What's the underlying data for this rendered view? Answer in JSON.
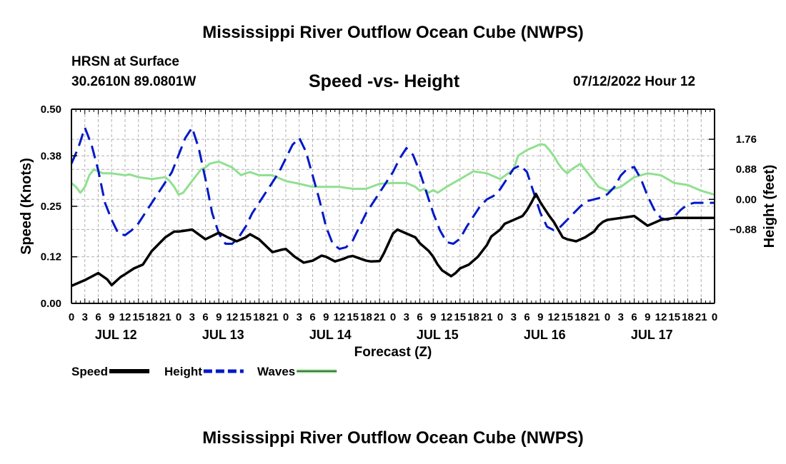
{
  "header": {
    "title": "Mississippi River Outflow Ocean Cube (NWPS)",
    "location": "HRSN at Surface",
    "coords": "30.2610N  89.0801W",
    "subtitle": "Speed -vs- Height",
    "datetime": "07/12/2022 Hour 12"
  },
  "footer": {
    "title": "Mississippi River Outflow Ocean Cube (NWPS)"
  },
  "chart_data": {
    "type": "line",
    "title": "Speed -vs- Height",
    "xlabel": "Forecast (Z)",
    "ylabel": "Speed (Knots)",
    "y2label": "Height (feet)",
    "xlim": [
      0,
      144
    ],
    "ylim": [
      0,
      0.5
    ],
    "y2lim": [
      -3.045,
      2.64
    ],
    "y_ticks": [
      "0.00",
      "0.12",
      "0.25",
      "0.38",
      "0.50"
    ],
    "y2_ticks": [
      {
        "value": 1.76,
        "label": "1.76"
      },
      {
        "value": 0.88,
        "label": "0.88"
      },
      {
        "value": 0.0,
        "label": "0.00"
      },
      {
        "value": -0.88,
        "label": "−0.88"
      }
    ],
    "hour_labels": [
      "0",
      "3",
      "6",
      "9",
      "12",
      "15",
      "18",
      "21",
      "0",
      "3",
      "6",
      "9",
      "12",
      "15",
      "18",
      "21",
      "0",
      "3",
      "6",
      "9",
      "12",
      "15",
      "18",
      "21",
      "0",
      "3",
      "6",
      "9",
      "12",
      "15",
      "18",
      "21",
      "0",
      "3",
      "6",
      "9",
      "12",
      "15",
      "18",
      "21",
      "0",
      "3",
      "6",
      "9",
      "12",
      "15",
      "18",
      "21",
      "0"
    ],
    "day_labels": [
      {
        "label": "JUL 12",
        "hour": 9
      },
      {
        "label": "JUL 13",
        "hour": 33
      },
      {
        "label": "JUL 14",
        "hour": 57
      },
      {
        "label": "JUL 15",
        "hour": 81
      },
      {
        "label": "JUL 16",
        "hour": 105
      },
      {
        "label": "JUL 17",
        "hour": 129
      }
    ],
    "grid": true,
    "legend_position": "bottom-left",
    "series": [
      {
        "name": "Speed",
        "color": "#000000",
        "dash": "solid",
        "axis": "left",
        "x": [
          0,
          3,
          6,
          8,
          9,
          11,
          12,
          14,
          16,
          18,
          21,
          23,
          24,
          27,
          30,
          33,
          35,
          37,
          39,
          40,
          42,
          45,
          47,
          48,
          50,
          52,
          54,
          56,
          57,
          59,
          61,
          62,
          63,
          64,
          66,
          67,
          69,
          70,
          72,
          73,
          75,
          77,
          78,
          80,
          81,
          82,
          83,
          85,
          86,
          87,
          89,
          91,
          93,
          94,
          96,
          97,
          98,
          101,
          102,
          103,
          104,
          105,
          107,
          108,
          110,
          111,
          113,
          115,
          117,
          118,
          119,
          120,
          123,
          126,
          129,
          132,
          135,
          138,
          141,
          144
        ],
        "y": [
          0.045,
          0.06,
          0.078,
          0.062,
          0.047,
          0.068,
          0.075,
          0.09,
          0.1,
          0.135,
          0.17,
          0.185,
          0.185,
          0.19,
          0.165,
          0.182,
          0.17,
          0.16,
          0.17,
          0.178,
          0.165,
          0.132,
          0.138,
          0.14,
          0.12,
          0.105,
          0.11,
          0.123,
          0.12,
          0.108,
          0.115,
          0.12,
          0.122,
          0.118,
          0.11,
          0.108,
          0.109,
          0.13,
          0.18,
          0.19,
          0.18,
          0.17,
          0.155,
          0.135,
          0.12,
          0.1,
          0.085,
          0.07,
          0.078,
          0.09,
          0.1,
          0.12,
          0.15,
          0.172,
          0.19,
          0.205,
          0.21,
          0.225,
          0.24,
          0.26,
          0.282,
          0.26,
          0.225,
          0.21,
          0.17,
          0.165,
          0.16,
          0.17,
          0.185,
          0.2,
          0.21,
          0.215,
          0.22,
          0.225,
          0.2,
          0.215,
          0.22,
          0.22,
          0.22,
          0.22
        ]
      },
      {
        "name": "Height",
        "color": "#0018c8",
        "dash": "dashed",
        "axis": "right",
        "x": [
          0,
          1.5,
          3,
          4.5,
          6,
          7.5,
          9,
          10.5,
          12,
          13.5,
          15,
          16.5,
          18,
          19.5,
          21,
          22.5,
          24,
          25.5,
          27,
          28.5,
          30,
          31.5,
          33,
          34.5,
          36,
          37.5,
          39,
          40.5,
          42,
          43.5,
          45,
          46.5,
          48,
          49.5,
          51,
          52.5,
          54,
          55.5,
          57,
          58.5,
          60,
          61.5,
          63,
          64.5,
          66,
          67.5,
          69,
          70.5,
          72,
          73.5,
          75,
          76.5,
          78,
          79.5,
          81,
          82.5,
          84,
          85.5,
          87,
          88.5,
          90,
          91.5,
          93,
          94.5,
          96,
          97.5,
          99,
          100.5,
          102,
          103.5,
          105,
          106.5,
          108,
          109.5,
          111,
          112.5,
          114,
          115.5,
          117,
          118.5,
          120,
          121.5,
          123,
          124.5,
          126,
          127.5,
          129,
          130.5,
          132,
          133.5,
          135,
          136.5,
          138,
          139.5,
          141,
          142.5,
          144
        ],
        "y": [
          1.05,
          1.5,
          2.1,
          1.6,
          0.85,
          -0.1,
          -0.6,
          -1.0,
          -1.05,
          -0.9,
          -0.7,
          -0.4,
          -0.1,
          0.2,
          0.5,
          0.8,
          1.3,
          1.8,
          2.1,
          1.5,
          0.6,
          -0.4,
          -1.0,
          -1.3,
          -1.3,
          -1.1,
          -0.8,
          -0.4,
          -0.1,
          0.2,
          0.5,
          0.8,
          1.2,
          1.6,
          1.8,
          1.4,
          0.7,
          0.0,
          -0.8,
          -1.3,
          -1.45,
          -1.4,
          -1.2,
          -0.8,
          -0.4,
          -0.1,
          0.2,
          0.5,
          0.8,
          1.2,
          1.5,
          1.3,
          0.8,
          0.2,
          -0.4,
          -0.9,
          -1.25,
          -1.3,
          -1.15,
          -0.8,
          -0.5,
          -0.2,
          0.0,
          0.1,
          0.3,
          0.6,
          0.9,
          1.0,
          0.8,
          0.2,
          -0.4,
          -0.8,
          -0.9,
          -0.8,
          -0.6,
          -0.4,
          -0.2,
          -0.05,
          0.0,
          0.05,
          0.15,
          0.35,
          0.7,
          0.9,
          0.95,
          0.6,
          0.1,
          -0.3,
          -0.55,
          -0.6,
          -0.5,
          -0.3,
          -0.15,
          -0.1,
          -0.1,
          -0.1,
          -0.1
        ]
      },
      {
        "name": "Waves",
        "color": "#90e090",
        "dash": "solid",
        "axis": "left",
        "x": [
          0,
          1,
          2,
          3,
          4,
          5,
          6,
          7,
          9,
          12,
          13,
          15,
          18,
          21,
          22,
          23,
          24,
          25,
          26,
          27,
          28,
          29,
          30,
          31,
          33,
          36,
          38,
          39,
          40,
          42,
          45,
          48,
          51,
          54,
          57,
          60,
          63,
          66,
          69,
          72,
          75,
          77,
          78,
          79,
          80,
          81,
          82,
          84,
          87,
          90,
          93,
          96,
          99,
          100,
          102,
          103,
          104,
          105,
          106,
          107,
          108,
          109,
          110,
          111,
          112,
          114,
          116,
          118,
          120,
          123,
          126,
          129,
          132,
          135,
          138,
          141,
          144
        ],
        "y": [
          0.31,
          0.3,
          0.285,
          0.3,
          0.33,
          0.345,
          0.34,
          0.335,
          0.335,
          0.33,
          0.332,
          0.325,
          0.32,
          0.325,
          0.315,
          0.3,
          0.28,
          0.285,
          0.3,
          0.315,
          0.33,
          0.345,
          0.35,
          0.36,
          0.365,
          0.35,
          0.33,
          0.335,
          0.338,
          0.33,
          0.33,
          0.315,
          0.308,
          0.3,
          0.3,
          0.3,
          0.295,
          0.295,
          0.308,
          0.31,
          0.31,
          0.3,
          0.29,
          0.295,
          0.285,
          0.292,
          0.285,
          0.3,
          0.32,
          0.34,
          0.335,
          0.32,
          0.345,
          0.38,
          0.395,
          0.4,
          0.405,
          0.41,
          0.408,
          0.395,
          0.38,
          0.36,
          0.345,
          0.335,
          0.345,
          0.36,
          0.33,
          0.3,
          0.29,
          0.3,
          0.325,
          0.335,
          0.33,
          0.31,
          0.305,
          0.29,
          0.28
        ]
      }
    ]
  }
}
